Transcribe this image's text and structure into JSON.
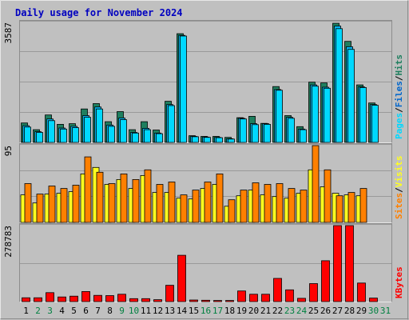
{
  "chart_data": {
    "type": "bar",
    "title": "Daily usage for November 2024",
    "colors": {
      "background": "#c0c0c0",
      "frame_light": "#e8e8e8",
      "frame_dark": "#8c8c8c",
      "grid": "#9a9a9a",
      "title": "#0000c0",
      "hits": "#1f7f5f",
      "files": "#00b5f0",
      "pages": "#00d8ff",
      "visits": "#ffff20",
      "sites": "#ff8000",
      "kbytes": "#ff0000",
      "weekday_text": "#000000",
      "weekend_text": "#008040",
      "legend_slash": "#000000"
    },
    "days": [
      "1",
      "2",
      "3",
      "4",
      "5",
      "6",
      "7",
      "8",
      "9",
      "10",
      "11",
      "12",
      "13",
      "14",
      "15",
      "16",
      "17",
      "18",
      "19",
      "20",
      "21",
      "22",
      "23",
      "24",
      "25",
      "26",
      "27",
      "28",
      "29",
      "30",
      "31"
    ],
    "weekend_days": [
      "2",
      "3",
      "9",
      "10",
      "16",
      "17",
      "23",
      "24",
      "30",
      "31"
    ],
    "panels": [
      {
        "name": "hits-files-pages",
        "ymax_label": "3587",
        "ylim": [
          0,
          3587
        ],
        "legend": [
          {
            "label": "Pages",
            "color": "#00d8ff"
          },
          {
            "label": "Files",
            "color": "#0066cc"
          },
          {
            "label": "Hits",
            "color": "#1f7f5f"
          }
        ],
        "series": [
          {
            "name": "Hits",
            "color": "#1f7f5f",
            "values": [
              580,
              380,
              820,
              540,
              560,
              1000,
              1160,
              620,
              920,
              380,
              620,
              370,
              1230,
              3250,
              200,
              180,
              180,
              150,
              740,
              780,
              570,
              1670,
              800,
              470,
              1800,
              1780,
              3560,
              3020,
              1720,
              1180,
              0
            ]
          },
          {
            "name": "Files",
            "color": "#00b5f0",
            "values": [
              500,
              320,
              700,
              430,
              480,
              800,
              1060,
              520,
              730,
              300,
              420,
              280,
              1130,
              3200,
              180,
              160,
              150,
              110,
              720,
              560,
              560,
              1580,
              750,
              400,
              1720,
              1650,
              3480,
              2860,
              1660,
              1130,
              0
            ]
          },
          {
            "name": "Pages",
            "color": "#00d8ff",
            "values": [
              460,
              300,
              650,
              400,
              440,
              750,
              1000,
              480,
              680,
              280,
              380,
              260,
              1100,
              3180,
              170,
              150,
              140,
              100,
              700,
              530,
              540,
              1560,
              720,
              380,
              1680,
              1620,
              3400,
              2780,
              1640,
              1110,
              0
            ]
          }
        ]
      },
      {
        "name": "visits-sites",
        "ymax_label": "95",
        "ylim": [
          0,
          95
        ],
        "legend": [
          {
            "label": "Sites",
            "color": "#ff8000"
          },
          {
            "label": "Visits",
            "color": "#ffff20"
          }
        ],
        "series": [
          {
            "name": "Visits",
            "color": "#ffff20",
            "values": [
              34,
              24,
              35,
              36,
              38,
              60,
              68,
              47,
              53,
              42,
              58,
              37,
              37,
              30,
              29,
              42,
              47,
              20,
              33,
              40,
              34,
              32,
              30,
              36,
              65,
              44,
              36,
              34,
              33,
              0,
              0
            ]
          },
          {
            "name": "Sites",
            "color": "#ff8000",
            "values": [
              48,
              35,
              45,
              42,
              46,
              81,
              62,
              48,
              60,
              53,
              65,
              47,
              50,
              34,
              40,
              50,
              60,
              28,
              40,
              49,
              47,
              48,
              42,
              40,
              95,
              65,
              33,
              37,
              42,
              0,
              0
            ]
          }
        ]
      },
      {
        "name": "kbytes",
        "ymax_label": "278783",
        "ylim": [
          0,
          278783
        ],
        "legend": [
          {
            "label": "KBytes",
            "color": "#ff0000"
          }
        ],
        "series": [
          {
            "name": "KBytes",
            "color": "#ff0000",
            "values": [
              14000,
              14000,
              33000,
              17000,
              20000,
              37000,
              23000,
              22000,
              27000,
              11000,
              11000,
              7000,
              60000,
              170000,
              6000,
              5000,
              4000,
              4000,
              39000,
              27000,
              27000,
              85000,
              43000,
              12000,
              66000,
              150000,
              278783,
              278783,
              68000,
              13000,
              0
            ]
          }
        ]
      }
    ]
  }
}
